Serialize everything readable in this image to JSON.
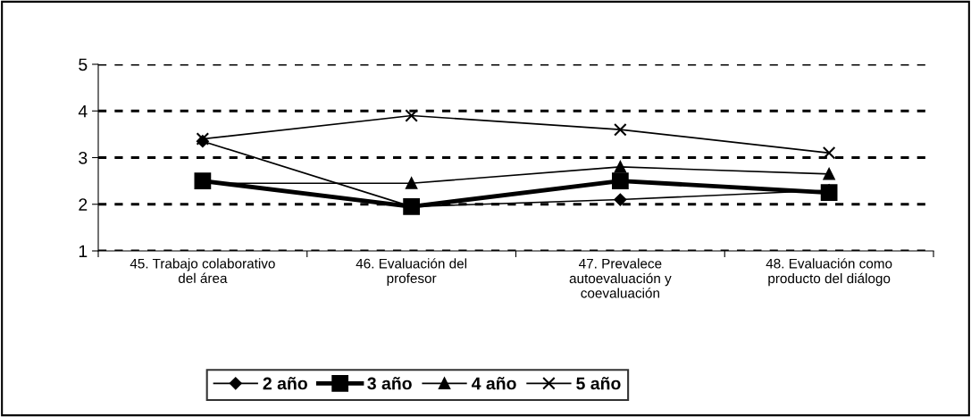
{
  "chart_data": {
    "type": "line",
    "categories": [
      "45. Trabajo colaborativo\ndel área",
      "46. Evaluación del\nprofesor",
      "47. Prevalece\nautoevaluación y\ncoevaluación",
      "48. Evaluación como\nproducto del diálogo"
    ],
    "series": [
      {
        "name": "2 año",
        "color": "#000000",
        "marker": "diamond",
        "values": [
          3.35,
          1.95,
          2.1,
          2.3
        ]
      },
      {
        "name": "3 año",
        "color": "#000000",
        "marker": "square",
        "values": [
          2.5,
          1.95,
          2.5,
          2.25
        ]
      },
      {
        "name": "4 año",
        "color": "#000000",
        "marker": "triangle",
        "values": [
          2.45,
          2.45,
          2.8,
          2.65
        ]
      },
      {
        "name": "5 año",
        "color": "#000000",
        "marker": "cross",
        "values": [
          3.4,
          3.9,
          3.6,
          3.1
        ]
      }
    ],
    "ylim": [
      1,
      5
    ],
    "yticks": [
      1,
      2,
      3,
      4,
      5
    ],
    "grid": "y",
    "legend": "bottom",
    "line_style": "solid"
  }
}
